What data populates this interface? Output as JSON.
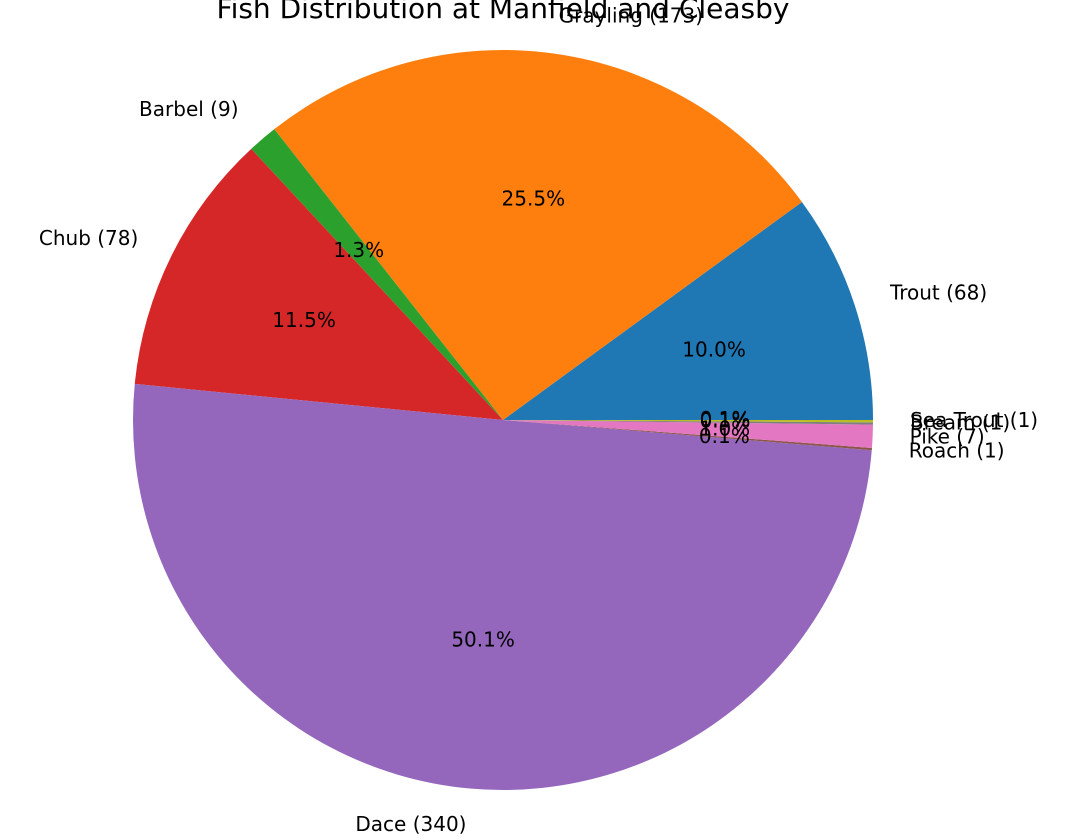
{
  "chart_data": {
    "type": "pie",
    "title": "Fish Distribution at Manfield and Cleasby",
    "categories": [
      "Trout (68)",
      "Grayling (173)",
      "Barbel (9)",
      "Chub (78)",
      "Dace (340)",
      "Roach (1)",
      "Pike (7)",
      "Bream (1)",
      "Sea Trout (1)"
    ],
    "values": [
      10.0,
      25.5,
      1.3,
      11.5,
      50.1,
      0.1,
      1.0,
      0.1,
      0.1
    ],
    "value_labels": [
      "10.0%",
      "25.5%",
      "1.3%",
      "11.5%",
      "50.1%",
      "0.1%",
      "1.0%",
      "0.1%",
      "0.1%"
    ],
    "colors": [
      "#1f77b4",
      "#ff7f0e",
      "#2ca02c",
      "#d62728",
      "#9467bd",
      "#8c564b",
      "#e377c2",
      "#7f7f7f",
      "#bcbd22"
    ]
  }
}
